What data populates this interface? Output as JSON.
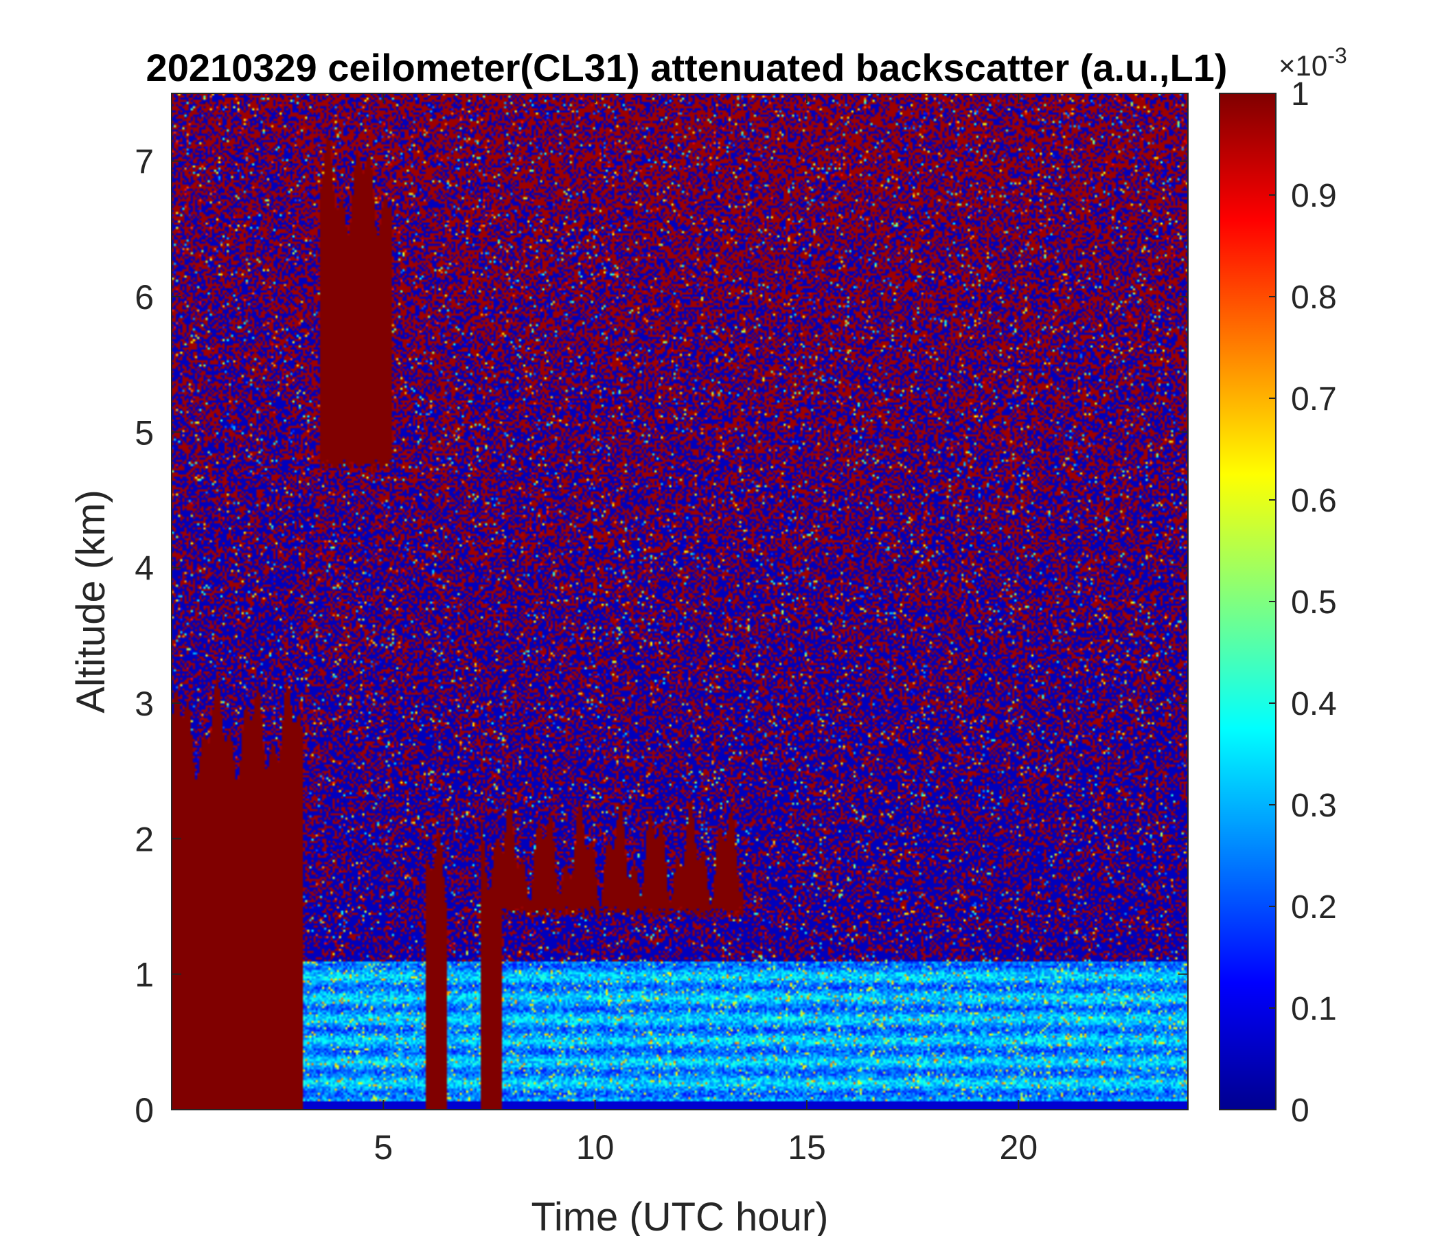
{
  "chart_data": {
    "type": "heatmap",
    "title": "20210329 ceilometer(CL31) attenuated backscatter (a.u.,L1)",
    "xlabel": "Time (UTC hour)",
    "ylabel": "Altitude (km)",
    "xlim": [
      0,
      24
    ],
    "ylim": [
      0,
      7.5
    ],
    "x_ticks": [
      5,
      10,
      15,
      20
    ],
    "y_ticks": [
      0,
      1,
      2,
      3,
      4,
      5,
      6,
      7
    ],
    "colorbar": {
      "colormap": "jet",
      "range": [
        0,
        1
      ],
      "ticks": [
        0,
        0.1,
        0.2,
        0.3,
        0.4,
        0.5,
        0.6,
        0.7,
        0.8,
        0.9,
        1
      ],
      "tick_labels": [
        "0",
        "0.1",
        "0.2",
        "0.3",
        "0.4",
        "0.5",
        "0.6",
        "0.7",
        "0.8",
        "0.9",
        "1"
      ],
      "multiplier": "×10",
      "multiplier_exponent": "-3"
    },
    "features": [
      {
        "name": "low-level-cloud",
        "t_start": 0,
        "t_end": 3.1,
        "alt_top_km": 2.8,
        "level": 1.0
      },
      {
        "name": "mid-level-cloud",
        "t_start": 3.5,
        "t_end": 5.2,
        "alt_bottom_km": 4.8,
        "alt_top_km": 6.8,
        "level": 1.0
      },
      {
        "name": "precipitation-shaft",
        "t_start": 6.0,
        "t_end": 6.5,
        "alt_top_km": 1.7,
        "level": 1.0
      },
      {
        "name": "precipitation-shaft",
        "t_start": 7.3,
        "t_end": 7.8,
        "alt_top_km": 2.0,
        "level": 1.0
      },
      {
        "name": "cloud-layer",
        "t_start": 7.8,
        "t_end": 13.5,
        "alt_bottom_km": 1.5,
        "alt_top_km": 1.9,
        "level": 1.0
      },
      {
        "name": "boundary-layer",
        "t_start": 3.1,
        "t_end": 24,
        "alt_top_km": 1.1,
        "level": 0.3
      }
    ]
  }
}
